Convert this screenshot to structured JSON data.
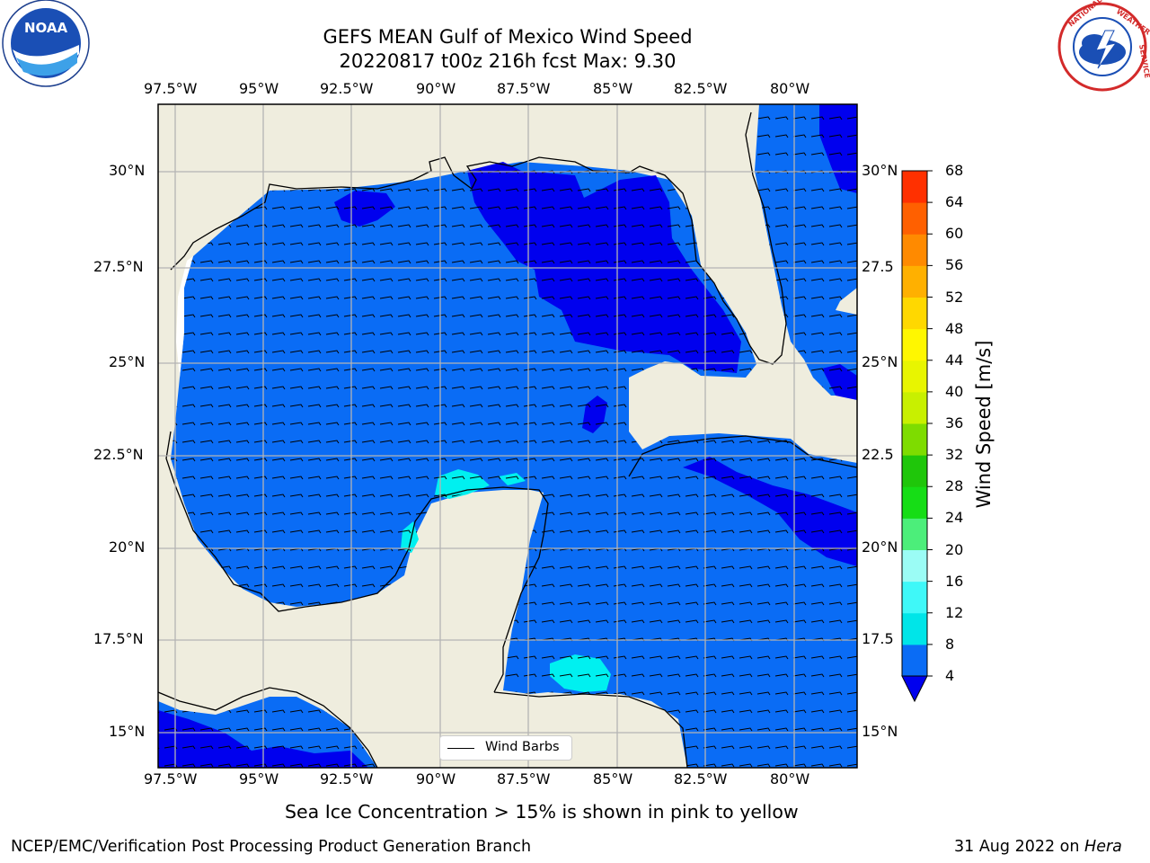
{
  "title_line1": "GEFS MEAN Gulf of Mexico Wind Speed",
  "title_line2": "20220817 t00z 216h fcst   Max: 9.30",
  "caption": "Sea Ice Concentration > 15% is shown in pink to yellow",
  "footer_left": "NCEP/EMC/Verification Post Processing Product Generation Branch",
  "footer_date": "31 Aug 2022 on ",
  "footer_host": "Hera",
  "logos": {
    "left": "noaa-logo",
    "right": "nws-logo"
  },
  "legend": {
    "label": "Wind Barbs"
  },
  "colorbar": {
    "label": "Wind Speed [m/s]",
    "ticks": [
      "4",
      "8",
      "12",
      "16",
      "20",
      "24",
      "28",
      "32",
      "36",
      "40",
      "44",
      "48",
      "52",
      "56",
      "60",
      "64",
      "68"
    ],
    "colors": [
      "#0a6cf5",
      "#00e5e8",
      "#3ff8f8",
      "#9bfcf5",
      "#4cee7a",
      "#16dd16",
      "#1fc60a",
      "#7edc00",
      "#c8f000",
      "#e8f500",
      "#fff700",
      "#ffd800",
      "#ffb000",
      "#ff8a00",
      "#ff6000",
      "#ff3000",
      "#ff0000"
    ],
    "extend_color": "#0000ee"
  },
  "map": {
    "x_ticks_top": [
      "97.5°W",
      "95°W",
      "92.5°W",
      "90°W",
      "87.5°W",
      "85°W",
      "82.5°W",
      "80°W"
    ],
    "x_ticks_bottom": [
      "97.5°W",
      "95°W",
      "92.5°W",
      "90°W",
      "87.5°W",
      "85°W",
      "82.5°W",
      "80°W"
    ],
    "y_ticks_left": [
      "30°N",
      "27.5°N",
      "25°N",
      "22.5°N",
      "20°N",
      "17.5°N",
      "15°N"
    ],
    "y_ticks_right": [
      "30°N",
      "27.5",
      "25°N",
      "22.5",
      "20°N",
      "17.5",
      "15°N"
    ],
    "colors": {
      "land": "#efedde",
      "ocean_low": "#0a6cf5",
      "ocean_calm": "#0000ee",
      "cyan": "#00f0f0",
      "grid": "#b4b4b4"
    }
  }
}
